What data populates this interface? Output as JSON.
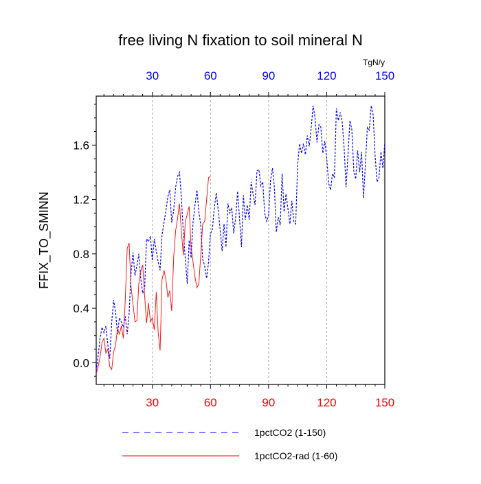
{
  "chart_data": {
    "type": "line",
    "title": "free living N fixation to soil mineral N",
    "ylabel": "FFIX_TO_SMINN",
    "units": "TgN/y",
    "xlabel": "",
    "xlim": [
      1,
      150
    ],
    "ylim": [
      -0.16,
      1.96
    ],
    "x_ticks": [
      30,
      60,
      90,
      120,
      150
    ],
    "x_tick_labels": [
      "30",
      "60",
      "90",
      "120",
      "150"
    ],
    "y_ticks": [
      0.0,
      0.4,
      0.8,
      1.2,
      1.6
    ],
    "y_tick_labels": [
      "0.0",
      "0.4",
      "0.8",
      "1.2",
      "1.6"
    ],
    "grid": "vertical dashed at x ticks",
    "colors": {
      "top_axis_labels": "#0000ff",
      "bottom_axis_labels": "#ff0000",
      "series_1": "#0000ff",
      "series_2": "#ff0000"
    },
    "legend_position": "bottom",
    "series": [
      {
        "name": "1pctCO2 (1-150)",
        "color": "#0000ff",
        "dash": "dashed",
        "points": [
          [
            1,
            -0.06
          ],
          [
            2,
            0.05
          ],
          [
            3,
            0.18
          ],
          [
            4,
            0.26
          ],
          [
            5,
            0.22
          ],
          [
            6,
            0.27
          ],
          [
            7,
            0.13
          ],
          [
            8,
            0.03
          ],
          [
            9,
            0.3
          ],
          [
            10,
            0.46
          ],
          [
            11,
            0.37
          ],
          [
            12,
            0.21
          ],
          [
            13,
            0.33
          ],
          [
            14,
            0.3
          ],
          [
            15,
            0.26
          ],
          [
            16,
            0.34
          ],
          [
            17,
            0.21
          ],
          [
            18,
            0.36
          ],
          [
            19,
            0.66
          ],
          [
            20,
            0.81
          ],
          [
            21,
            0.64
          ],
          [
            22,
            0.71
          ],
          [
            23,
            0.8
          ],
          [
            24,
            0.62
          ],
          [
            25,
            0.51
          ],
          [
            26,
            0.55
          ],
          [
            27,
            0.91
          ],
          [
            28,
            0.89
          ],
          [
            29,
            0.93
          ],
          [
            30,
            0.75
          ],
          [
            31,
            0.91
          ],
          [
            32,
            0.82
          ],
          [
            33,
            0.74
          ],
          [
            34,
            0.68
          ],
          [
            35,
            0.94
          ],
          [
            36,
            1.03
          ],
          [
            37,
            1.12
          ],
          [
            38,
            1.22
          ],
          [
            39,
            1.27
          ],
          [
            40,
            1.03
          ],
          [
            41,
            1.12
          ],
          [
            42,
            1.29
          ],
          [
            43,
            1.37
          ],
          [
            44,
            1.4
          ],
          [
            45,
            1.21
          ],
          [
            46,
            0.96
          ],
          [
            47,
            0.76
          ],
          [
            48,
            0.58
          ],
          [
            49,
            0.9
          ],
          [
            50,
            0.77
          ],
          [
            51,
            1.03
          ],
          [
            52,
            1.16
          ],
          [
            53,
            1.27
          ],
          [
            54,
            1.11
          ],
          [
            55,
            1.01
          ],
          [
            56,
            0.76
          ],
          [
            57,
            0.71
          ],
          [
            58,
            0.62
          ],
          [
            59,
            0.74
          ],
          [
            60,
            0.95
          ],
          [
            61,
            0.98
          ],
          [
            62,
            1.14
          ],
          [
            63,
            1.25
          ],
          [
            64,
            1.12
          ],
          [
            65,
            0.98
          ],
          [
            66,
            0.82
          ],
          [
            67,
            1.02
          ],
          [
            68,
            0.85
          ],
          [
            69,
            1.17
          ],
          [
            70,
            1.1
          ],
          [
            71,
            1.14
          ],
          [
            72,
            0.95
          ],
          [
            73,
            1.07
          ],
          [
            74,
            1.26
          ],
          [
            75,
            1.06
          ],
          [
            76,
            0.85
          ],
          [
            77,
            1.23
          ],
          [
            78,
            1.05
          ],
          [
            79,
            1.16
          ],
          [
            80,
            1.05
          ],
          [
            81,
            1.33
          ],
          [
            82,
            1.24
          ],
          [
            83,
            1.16
          ],
          [
            84,
            1.41
          ],
          [
            85,
            1.42
          ],
          [
            86,
            1.3
          ],
          [
            87,
            1.33
          ],
          [
            88,
            1.1
          ],
          [
            89,
            1.04
          ],
          [
            90,
            1.08
          ],
          [
            91,
            1.34
          ],
          [
            92,
            1.43
          ],
          [
            93,
            1.29
          ],
          [
            94,
            0.96
          ],
          [
            95,
            1.07
          ],
          [
            96,
            1.01
          ],
          [
            97,
            1.39
          ],
          [
            98,
            1.11
          ],
          [
            99,
            1.24
          ],
          [
            100,
            1.13
          ],
          [
            101,
            1.02
          ],
          [
            102,
            1.19
          ],
          [
            103,
            1.04
          ],
          [
            104,
            1.02
          ],
          [
            105,
            1.46
          ],
          [
            106,
            1.61
          ],
          [
            107,
            1.54
          ],
          [
            108,
            1.61
          ],
          [
            109,
            1.53
          ],
          [
            110,
            1.67
          ],
          [
            111,
            1.59
          ],
          [
            112,
            1.73
          ],
          [
            113,
            1.89
          ],
          [
            114,
            1.8
          ],
          [
            115,
            1.62
          ],
          [
            116,
            1.75
          ],
          [
            117,
            1.73
          ],
          [
            118,
            1.54
          ],
          [
            119,
            1.63
          ],
          [
            120,
            1.51
          ],
          [
            121,
            1.32
          ],
          [
            122,
            1.27
          ],
          [
            123,
            1.39
          ],
          [
            124,
            1.36
          ],
          [
            125,
            1.87
          ],
          [
            126,
            1.78
          ],
          [
            127,
            1.84
          ],
          [
            128,
            1.77
          ],
          [
            129,
            1.58
          ],
          [
            130,
            1.29
          ],
          [
            131,
            1.53
          ],
          [
            132,
            1.78
          ],
          [
            133,
            1.71
          ],
          [
            134,
            1.41
          ],
          [
            135,
            1.35
          ],
          [
            136,
            1.56
          ],
          [
            137,
            1.4
          ],
          [
            138,
            1.55
          ],
          [
            139,
            1.21
          ],
          [
            140,
            1.46
          ],
          [
            141,
            1.73
          ],
          [
            142,
            1.71
          ],
          [
            143,
            1.89
          ],
          [
            144,
            1.82
          ],
          [
            145,
            1.52
          ],
          [
            146,
            1.33
          ],
          [
            147,
            1.36
          ],
          [
            148,
            1.55
          ],
          [
            149,
            1.43
          ],
          [
            150,
            1.62
          ]
        ]
      },
      {
        "name": "1pctCO2-rad (1-60)",
        "color": "#ff0000",
        "dash": "solid",
        "points": [
          [
            1,
            -0.08
          ],
          [
            2,
            -0.03
          ],
          [
            3,
            0.04
          ],
          [
            4,
            0.15
          ],
          [
            5,
            0.18
          ],
          [
            6,
            0.07
          ],
          [
            7,
            0.1
          ],
          [
            8,
            -0.03
          ],
          [
            9,
            -0.05
          ],
          [
            10,
            0.08
          ],
          [
            11,
            0.13
          ],
          [
            12,
            0.25
          ],
          [
            13,
            0.21
          ],
          [
            14,
            0.27
          ],
          [
            15,
            0.18
          ],
          [
            16,
            0.46
          ],
          [
            17,
            0.84
          ],
          [
            18,
            0.88
          ],
          [
            19,
            0.56
          ],
          [
            20,
            0.43
          ],
          [
            21,
            0.3
          ],
          [
            22,
            0.31
          ],
          [
            23,
            0.58
          ],
          [
            24,
            0.67
          ],
          [
            25,
            0.72
          ],
          [
            26,
            0.49
          ],
          [
            27,
            0.29
          ],
          [
            28,
            0.44
          ],
          [
            29,
            0.3
          ],
          [
            30,
            0.33
          ],
          [
            31,
            0.24
          ],
          [
            32,
            0.52
          ],
          [
            33,
            0.22
          ],
          [
            34,
            0.09
          ],
          [
            35,
            0.61
          ],
          [
            36,
            0.68
          ],
          [
            37,
            0.61
          ],
          [
            38,
            0.48
          ],
          [
            39,
            0.53
          ],
          [
            40,
            0.38
          ],
          [
            41,
            0.78
          ],
          [
            42,
            0.97
          ],
          [
            43,
            1.06
          ],
          [
            44,
            1.17
          ],
          [
            45,
            0.96
          ],
          [
            46,
            0.79
          ],
          [
            47,
            1.04
          ],
          [
            48,
            1.09
          ],
          [
            49,
            1.15
          ],
          [
            50,
            0.85
          ],
          [
            51,
            0.74
          ],
          [
            52,
            0.63
          ],
          [
            53,
            0.55
          ],
          [
            54,
            0.58
          ],
          [
            55,
            0.8
          ],
          [
            56,
            1.02
          ],
          [
            57,
            1.04
          ],
          [
            58,
            1.2
          ],
          [
            59,
            1.36
          ],
          [
            60,
            1.37
          ]
        ]
      }
    ]
  }
}
